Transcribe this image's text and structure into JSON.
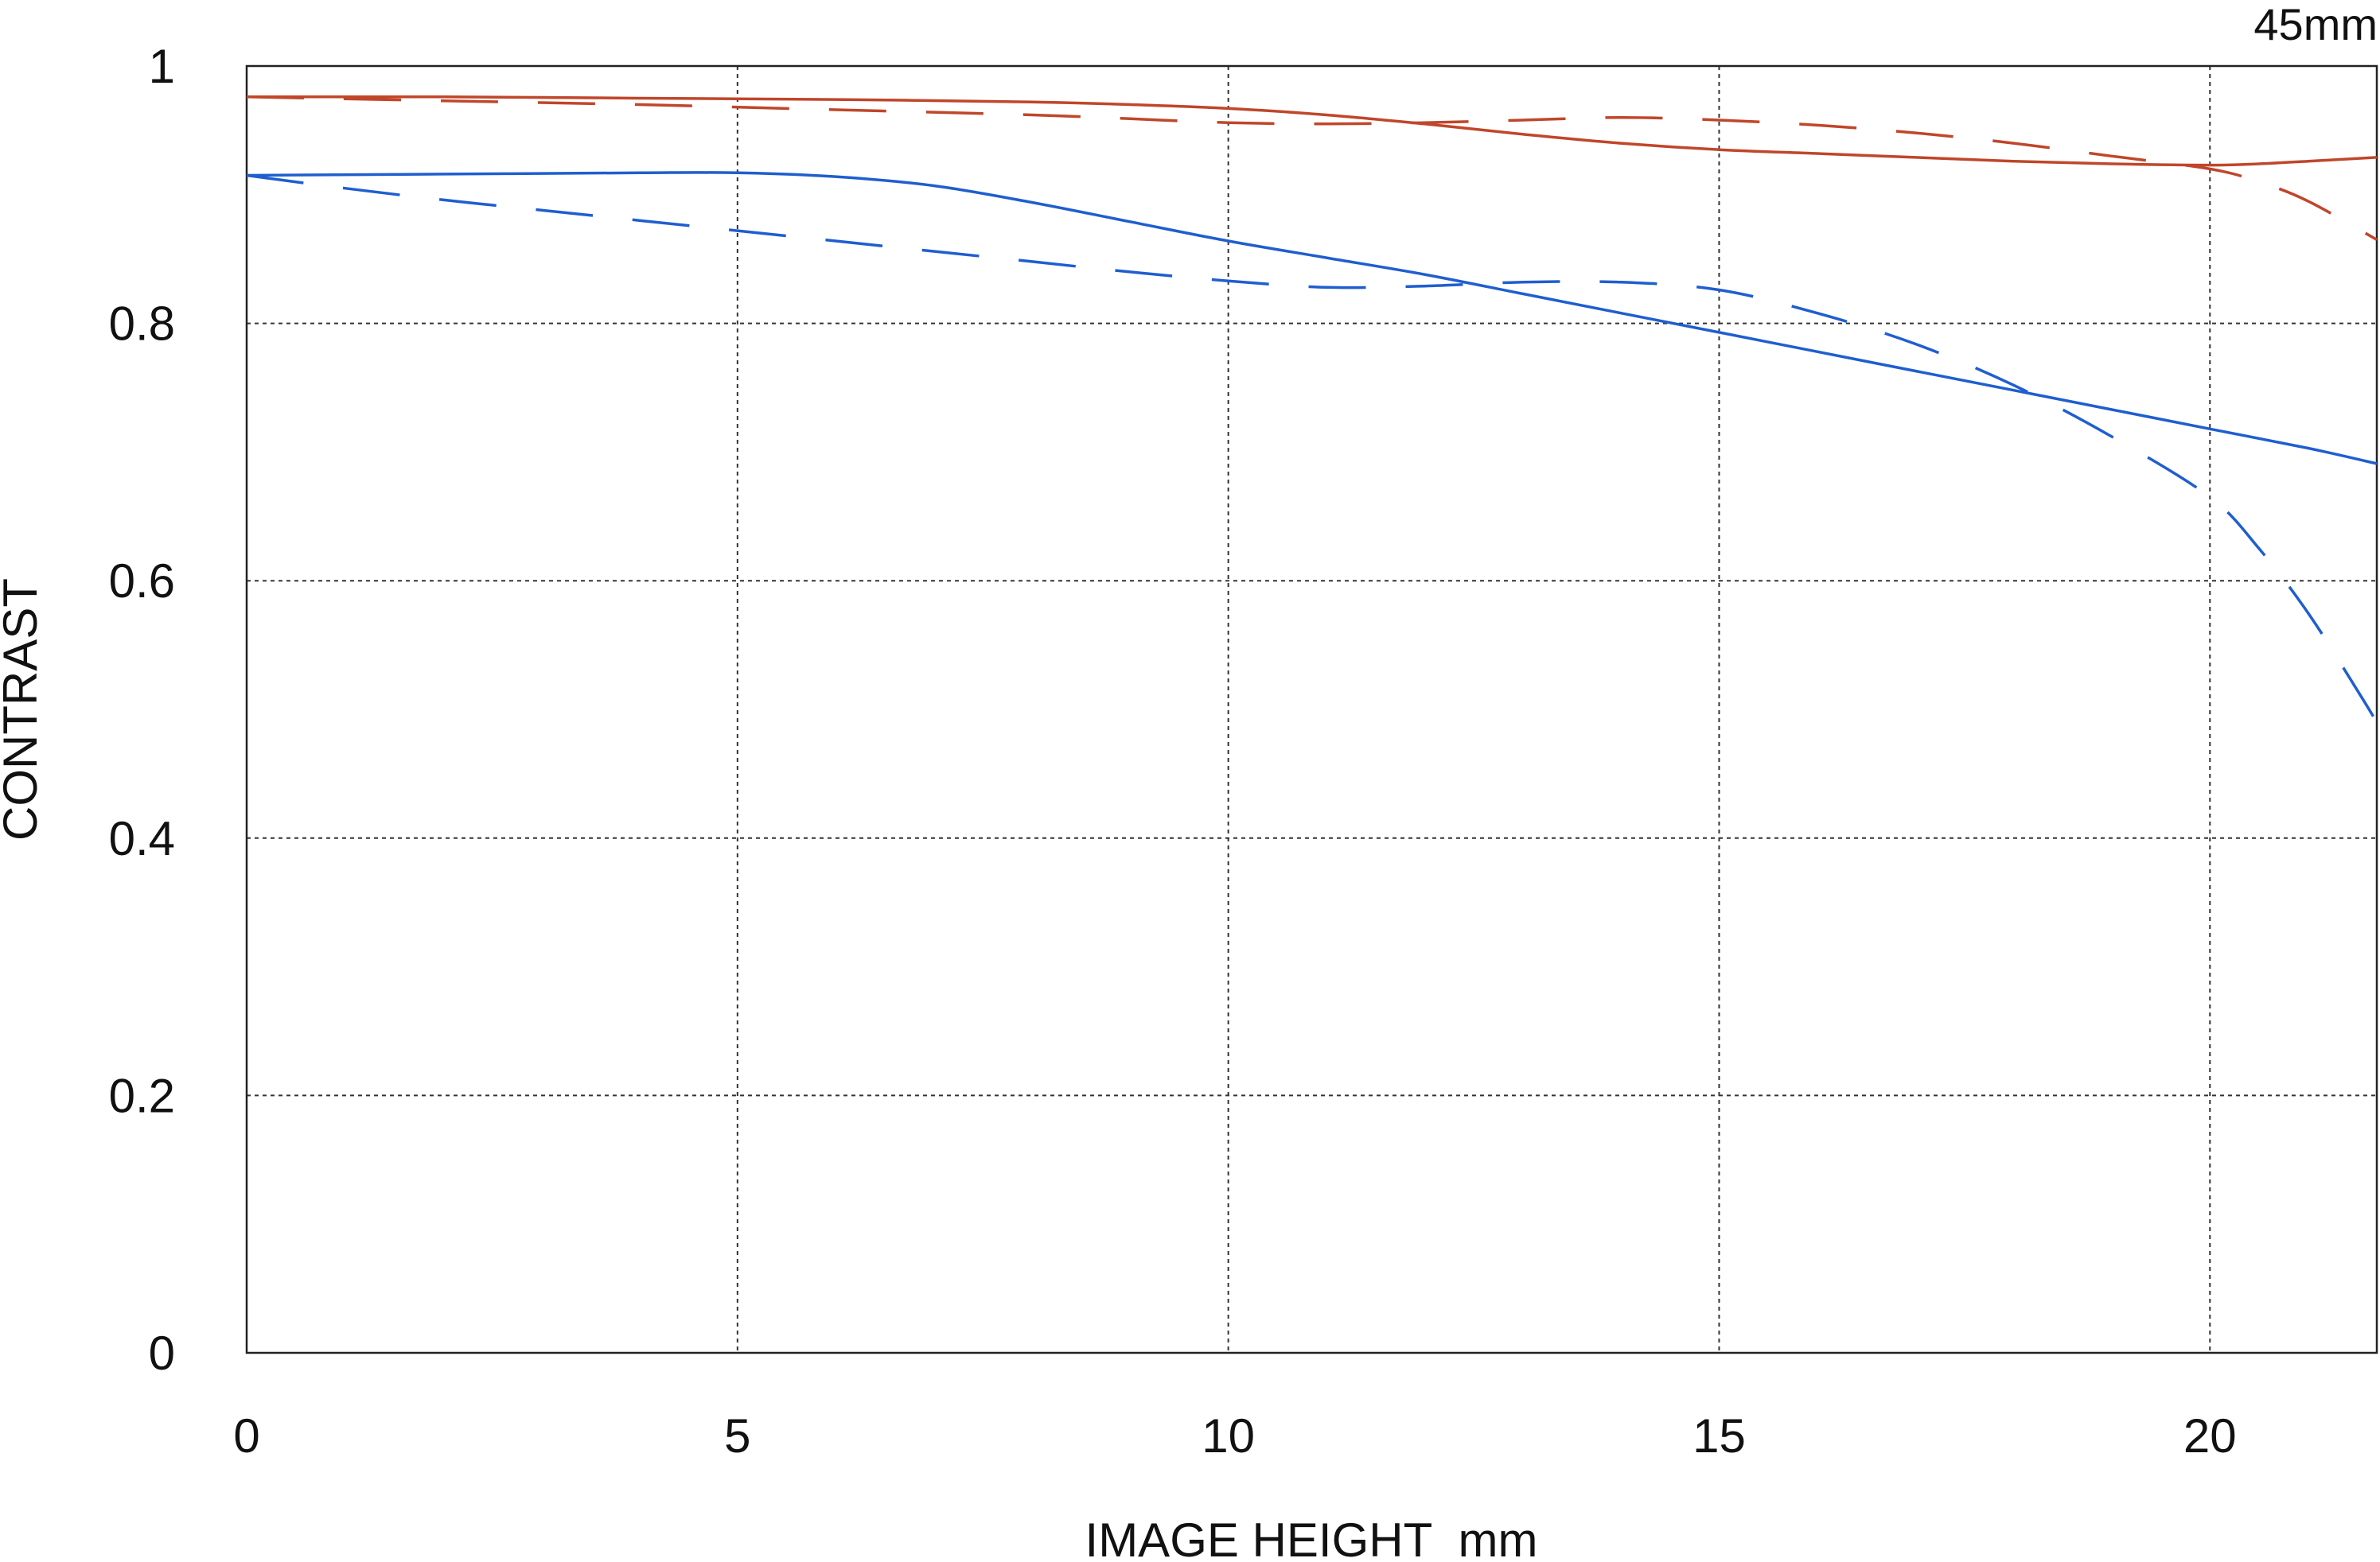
{
  "chart_data": {
    "type": "line",
    "title": "",
    "corner_label": "45mm",
    "xlabel": "IMAGE HEIGHT  mm",
    "ylabel": "CONTRAST",
    "xlim": [
      0,
      21.7
    ],
    "ylim": [
      0,
      1
    ],
    "x_ticks": [
      0,
      5,
      10,
      15,
      20
    ],
    "x_tick_labels": [
      "0",
      "5",
      "10",
      "15",
      "20"
    ],
    "y_ticks": [
      0,
      0.2,
      0.4,
      0.6,
      0.8,
      1
    ],
    "y_tick_labels": [
      "0",
      "0.2",
      "0.4",
      "0.6",
      "0.8",
      "1"
    ],
    "grid": true,
    "series": [
      {
        "color": "#c0462a",
        "style": "solid",
        "x": [
          0,
          2,
          4,
          6,
          8,
          9,
          10,
          11,
          12,
          13,
          14,
          15,
          16,
          17,
          18,
          19,
          20,
          20.5,
          21,
          21.7
        ],
        "y": [
          0.976,
          0.976,
          0.975,
          0.974,
          0.972,
          0.97,
          0.967,
          0.962,
          0.955,
          0.947,
          0.94,
          0.935,
          0.932,
          0.929,
          0.926,
          0.924,
          0.923,
          0.924,
          0.926,
          0.929
        ]
      },
      {
        "color": "#c0462a",
        "style": "dashed",
        "x": [
          0,
          2,
          4,
          6,
          8,
          9,
          10,
          11,
          12,
          13,
          14,
          15,
          16,
          17,
          18,
          19,
          20,
          20.5,
          21,
          21.7
        ],
        "y": [
          0.976,
          0.973,
          0.97,
          0.966,
          0.962,
          0.959,
          0.956,
          0.955,
          0.956,
          0.958,
          0.96,
          0.958,
          0.954,
          0.948,
          0.94,
          0.93,
          0.92,
          0.91,
          0.895,
          0.865
        ]
      },
      {
        "color": "#1f5ecf",
        "style": "solid",
        "x": [
          0,
          2,
          4,
          5,
          6,
          7,
          8,
          9,
          10,
          11,
          12,
          13,
          14,
          15,
          16,
          17,
          18,
          19,
          20,
          21,
          21.7
        ],
        "y": [
          0.915,
          0.916,
          0.917,
          0.917,
          0.914,
          0.907,
          0.894,
          0.879,
          0.864,
          0.851,
          0.838,
          0.823,
          0.808,
          0.793,
          0.778,
          0.763,
          0.748,
          0.733,
          0.718,
          0.703,
          0.691
        ]
      },
      {
        "color": "#1f5ecf",
        "style": "dashed",
        "x": [
          0,
          1,
          2,
          3,
          4,
          5,
          6,
          7,
          8,
          9,
          10,
          11,
          12,
          13,
          14,
          15,
          16,
          17,
          18,
          19,
          20,
          20.5,
          21,
          21.5,
          21.7
        ],
        "y": [
          0.915,
          0.905,
          0.896,
          0.888,
          0.88,
          0.872,
          0.864,
          0.856,
          0.848,
          0.84,
          0.833,
          0.828,
          0.829,
          0.832,
          0.832,
          0.826,
          0.808,
          0.784,
          0.752,
          0.712,
          0.665,
          0.625,
          0.575,
          0.515,
          0.49
        ]
      }
    ]
  }
}
